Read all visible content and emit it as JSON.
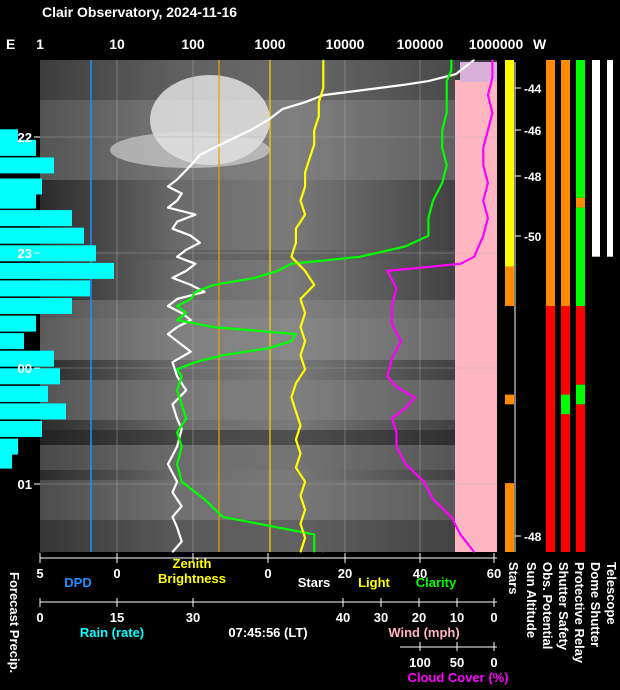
{
  "title": "Clair Observatory, 2024-11-16",
  "timestamp": "07:45:56 (LT)",
  "colors": {
    "background": "#000000",
    "dpd": "#1e90ff",
    "brightness": "#ffff00",
    "stars": "#ffffff",
    "clarity": "#00ff00",
    "rain": "#00ffff",
    "wind": "#ffb6c1",
    "cloud": "#ff00ff",
    "ref_line": "#f0a000",
    "obs_red": "#ff0000",
    "obs_orange": "#ff8c00"
  },
  "chart_data": {
    "type": "line",
    "top_axis": {
      "left_label": "E",
      "right_label": "W",
      "ticks": [
        "1",
        "10",
        "100",
        "1000",
        "10000",
        "100000",
        "1000000"
      ],
      "scale": "log"
    },
    "time_axis": {
      "ticks": [
        "22",
        "23",
        "00",
        "01"
      ]
    },
    "sun_altitude_ticks": [
      "-44",
      "-46",
      "-48",
      "-50",
      "-48"
    ],
    "bottom_axes": [
      {
        "ticks": [
          "5",
          "0"
        ],
        "label": "DPD",
        "color": "#1e90ff"
      },
      {
        "ticks": [
          "0"
        ],
        "label": "Zenith\nBrightness",
        "label_line1": "Zenith",
        "label_line2": "Brightness",
        "color": "#ffff00"
      },
      {
        "ticks": [
          "20",
          "40",
          "60"
        ],
        "label": "Stars",
        "color": "#ffffff"
      },
      {
        "label": "Light",
        "color": "#ffff00"
      },
      {
        "label": "Clarity",
        "color": "#00ff00"
      },
      {
        "ticks": [
          "0",
          "15",
          "30"
        ],
        "label": "Rain (rate)",
        "color": "#00ffff"
      },
      {
        "ticks": [
          "40",
          "30",
          "20",
          "10",
          "0"
        ],
        "label": "Wind (mph)",
        "color": "#ffb6c1"
      },
      {
        "ticks": [
          "100",
          "50",
          "0"
        ],
        "label": "Cloud Cover (%)",
        "color": "#ff00ff"
      }
    ],
    "vertical_labels": [
      "Forecast Precip.",
      "Stars",
      "Sun Altitude",
      "Obs. Potential",
      "Shutter Safety",
      "Protective Relay",
      "Dome Shutter",
      "Telescope"
    ],
    "series": [
      {
        "name": "Stars",
        "color": "#ffffff",
        "points": [
          [
            0,
            0.95
          ],
          [
            0.1,
            0.94
          ],
          [
            0.2,
            0.93
          ],
          [
            0.3,
            0.92
          ],
          [
            0.4,
            0.91
          ],
          [
            0.5,
            0.88
          ],
          [
            0.6,
            0.85
          ],
          [
            0.7,
            0.8
          ],
          [
            0.8,
            0.74
          ],
          [
            0.9,
            0.68
          ],
          [
            1.0,
            0.62
          ],
          [
            1.2,
            0.58
          ],
          [
            1.4,
            0.53
          ],
          [
            1.7,
            0.5
          ],
          [
            2.0,
            0.46
          ],
          [
            2.5,
            0.38
          ],
          [
            2.7,
            0.35
          ],
          [
            3.0,
            0.33
          ],
          [
            3.4,
            0.3
          ],
          [
            3.6,
            0.28
          ],
          [
            3.8,
            0.31
          ],
          [
            4.0,
            0.3
          ],
          [
            4.2,
            0.28
          ],
          [
            4.4,
            0.34
          ],
          [
            4.6,
            0.3
          ],
          [
            4.8,
            0.29
          ],
          [
            5.0,
            0.33
          ],
          [
            5.2,
            0.35
          ],
          [
            5.4,
            0.32
          ],
          [
            5.6,
            0.3
          ],
          [
            5.8,
            0.34
          ],
          [
            6.0,
            0.32
          ],
          [
            6.2,
            0.29
          ],
          [
            6.4,
            0.33
          ],
          [
            6.6,
            0.36
          ],
          [
            6.8,
            0.3
          ],
          [
            7.0,
            0.28
          ],
          [
            7.2,
            0.31
          ],
          [
            7.4,
            0.33
          ],
          [
            7.6,
            0.3
          ],
          [
            7.8,
            0.28
          ],
          [
            8.0,
            0.3
          ],
          [
            8.3,
            0.33
          ],
          [
            8.6,
            0.29
          ],
          [
            9.0,
            0.3
          ],
          [
            9.4,
            0.32
          ],
          [
            9.8,
            0.29
          ],
          [
            10.2,
            0.3
          ],
          [
            10.5,
            0.31
          ],
          [
            11.0,
            0.3
          ],
          [
            11.5,
            0.28
          ],
          [
            12.0,
            0.3
          ],
          [
            12.3,
            0.29
          ],
          [
            12.7,
            0.31
          ],
          [
            13.0,
            0.29
          ],
          [
            13.3,
            0.3
          ],
          [
            13.7,
            0.31
          ],
          [
            14.0,
            0.29
          ]
        ]
      },
      {
        "name": "Clarity",
        "color": "#00ff00",
        "points": [
          [
            0,
            0.9
          ],
          [
            0.3,
            0.9
          ],
          [
            0.6,
            0.89
          ],
          [
            1.0,
            0.89
          ],
          [
            1.5,
            0.89
          ],
          [
            2.0,
            0.88
          ],
          [
            2.5,
            0.88
          ],
          [
            3.0,
            0.89
          ],
          [
            3.5,
            0.88
          ],
          [
            4.0,
            0.86
          ],
          [
            4.5,
            0.85
          ],
          [
            5.0,
            0.85
          ],
          [
            5.3,
            0.8
          ],
          [
            5.6,
            0.7
          ],
          [
            5.8,
            0.55
          ],
          [
            6.0,
            0.52
          ],
          [
            6.2,
            0.47
          ],
          [
            6.4,
            0.38
          ],
          [
            6.6,
            0.34
          ],
          [
            6.8,
            0.33
          ],
          [
            7.0,
            0.3
          ],
          [
            7.2,
            0.32
          ],
          [
            7.4,
            0.3
          ],
          [
            7.6,
            0.38
          ],
          [
            7.8,
            0.56
          ],
          [
            8.0,
            0.55
          ],
          [
            8.2,
            0.5
          ],
          [
            8.4,
            0.4
          ],
          [
            8.6,
            0.34
          ],
          [
            8.8,
            0.3
          ],
          [
            9.0,
            0.31
          ],
          [
            9.4,
            0.3
          ],
          [
            9.8,
            0.31
          ],
          [
            10.2,
            0.32
          ],
          [
            10.6,
            0.3
          ],
          [
            11.0,
            0.31
          ],
          [
            11.5,
            0.3
          ],
          [
            12.0,
            0.31
          ],
          [
            12.5,
            0.36
          ],
          [
            13.0,
            0.4
          ],
          [
            13.5,
            0.6
          ],
          [
            14.0,
            0.6
          ]
        ]
      },
      {
        "name": "Zenith Brightness",
        "color": "#ffff00",
        "points": [
          [
            0,
            0.62
          ],
          [
            0.4,
            0.62
          ],
          [
            0.8,
            0.62
          ],
          [
            1.2,
            0.61
          ],
          [
            1.6,
            0.61
          ],
          [
            2.0,
            0.6
          ],
          [
            2.4,
            0.6
          ],
          [
            2.8,
            0.59
          ],
          [
            3.2,
            0.58
          ],
          [
            3.6,
            0.58
          ],
          [
            4.0,
            0.57
          ],
          [
            4.4,
            0.58
          ],
          [
            4.8,
            0.56
          ],
          [
            5.2,
            0.56
          ],
          [
            5.6,
            0.55
          ],
          [
            6.0,
            0.58
          ],
          [
            6.4,
            0.6
          ],
          [
            6.8,
            0.57
          ],
          [
            7.2,
            0.58
          ],
          [
            7.6,
            0.57
          ],
          [
            8.0,
            0.58
          ],
          [
            8.4,
            0.57
          ],
          [
            8.8,
            0.58
          ],
          [
            9.2,
            0.56
          ],
          [
            9.6,
            0.55
          ],
          [
            10.0,
            0.56
          ],
          [
            10.4,
            0.57
          ],
          [
            10.8,
            0.56
          ],
          [
            11.2,
            0.57
          ],
          [
            11.6,
            0.56
          ],
          [
            12.0,
            0.58
          ],
          [
            12.4,
            0.57
          ],
          [
            12.8,
            0.58
          ],
          [
            13.2,
            0.57
          ],
          [
            13.6,
            0.58
          ],
          [
            14.0,
            0.57
          ]
        ]
      },
      {
        "name": "Cloud Cover",
        "color": "#ff00ff",
        "points": [
          [
            0,
            0.99
          ],
          [
            0.5,
            0.99
          ],
          [
            1.0,
            0.98
          ],
          [
            1.5,
            0.99
          ],
          [
            2.0,
            0.98
          ],
          [
            2.5,
            0.97
          ],
          [
            3.0,
            0.97
          ],
          [
            3.5,
            0.98
          ],
          [
            4.0,
            0.97
          ],
          [
            4.5,
            0.98
          ],
          [
            5.0,
            0.97
          ],
          [
            5.3,
            0.96
          ],
          [
            5.6,
            0.95
          ],
          [
            5.8,
            0.92
          ],
          [
            6.0,
            0.76
          ],
          [
            6.5,
            0.78
          ],
          [
            7.0,
            0.77
          ],
          [
            7.5,
            0.77
          ],
          [
            8.0,
            0.79
          ],
          [
            8.5,
            0.77
          ],
          [
            9.0,
            0.76
          ],
          [
            9.3,
            0.78
          ],
          [
            9.6,
            0.82
          ],
          [
            9.9,
            0.8
          ],
          [
            10.2,
            0.77
          ],
          [
            10.6,
            0.78
          ],
          [
            11.0,
            0.78
          ],
          [
            11.5,
            0.8
          ],
          [
            12.0,
            0.84
          ],
          [
            12.5,
            0.86
          ],
          [
            13.0,
            0.9
          ],
          [
            13.5,
            0.92
          ],
          [
            14.0,
            0.95
          ]
        ]
      },
      {
        "name": "DPD",
        "color": "#1e90ff",
        "points": [
          [
            0,
            0.62
          ],
          [
            14.0,
            0.62
          ]
        ]
      }
    ],
    "rain": [
      [
        2.2,
        0.3
      ],
      [
        2.5,
        0.6
      ],
      [
        3.0,
        0.9
      ],
      [
        3.6,
        0.7
      ],
      [
        4.0,
        0.6
      ],
      [
        4.5,
        1.2
      ],
      [
        5.0,
        1.4
      ],
      [
        5.5,
        1.6
      ],
      [
        6.0,
        1.9
      ],
      [
        6.5,
        1.5
      ],
      [
        7.0,
        1.2
      ],
      [
        7.5,
        0.6
      ],
      [
        8.0,
        0.4
      ],
      [
        8.5,
        0.9
      ],
      [
        9.0,
        1.0
      ],
      [
        9.5,
        0.8
      ],
      [
        10.0,
        1.1
      ],
      [
        10.5,
        0.7
      ],
      [
        11.0,
        0.3
      ],
      [
        11.4,
        0.2
      ]
    ],
    "ref_lines": [
      {
        "name": "left",
        "x_frac": 0.395
      },
      {
        "name": "right",
        "x_frac": 0.505
      }
    ],
    "status_bars": [
      {
        "name": "Stars",
        "segments": [
          [
            0,
            0.42,
            "#ffff00"
          ],
          [
            0.42,
            0.5,
            "#ff8c00"
          ],
          [
            0.5,
            0.68,
            "#000000"
          ],
          [
            0.68,
            0.7,
            "#ff8c00"
          ],
          [
            0.7,
            0.86,
            "#000000"
          ],
          [
            0.86,
            1.0,
            "#ff8c00"
          ]
        ]
      },
      {
        "name": "Obs. Potential",
        "segments": [
          [
            0,
            0.06,
            "#ff8c00"
          ],
          [
            0.06,
            0.5,
            "#ff8c00"
          ],
          [
            0.5,
            1.0,
            "#ff0000"
          ]
        ]
      },
      {
        "name": "Shutter Safety",
        "segments": [
          [
            0,
            0.5,
            "#ff8c00"
          ],
          [
            0.5,
            0.68,
            "#ff0000"
          ],
          [
            0.68,
            0.72,
            "#00ff00"
          ],
          [
            0.72,
            1.0,
            "#ff0000"
          ]
        ]
      },
      {
        "name": "Protective Relay",
        "segments": [
          [
            0,
            0.28,
            "#00ff00"
          ],
          [
            0.28,
            0.3,
            "#ff8c00"
          ],
          [
            0.3,
            0.5,
            "#00ff00"
          ],
          [
            0.5,
            0.66,
            "#ff0000"
          ],
          [
            0.66,
            0.7,
            "#00ff00"
          ],
          [
            0.7,
            1.0,
            "#ff0000"
          ]
        ]
      },
      {
        "name": "Dome Shutter",
        "segments": [
          [
            0,
            0.4,
            "#ffffff"
          ],
          [
            0.4,
            1.0,
            "#000000"
          ]
        ]
      },
      {
        "name": "Telescope",
        "segments": [
          [
            0,
            0.4,
            "#ffffff"
          ],
          [
            0.4,
            1.0,
            "#000000"
          ]
        ]
      }
    ]
  }
}
